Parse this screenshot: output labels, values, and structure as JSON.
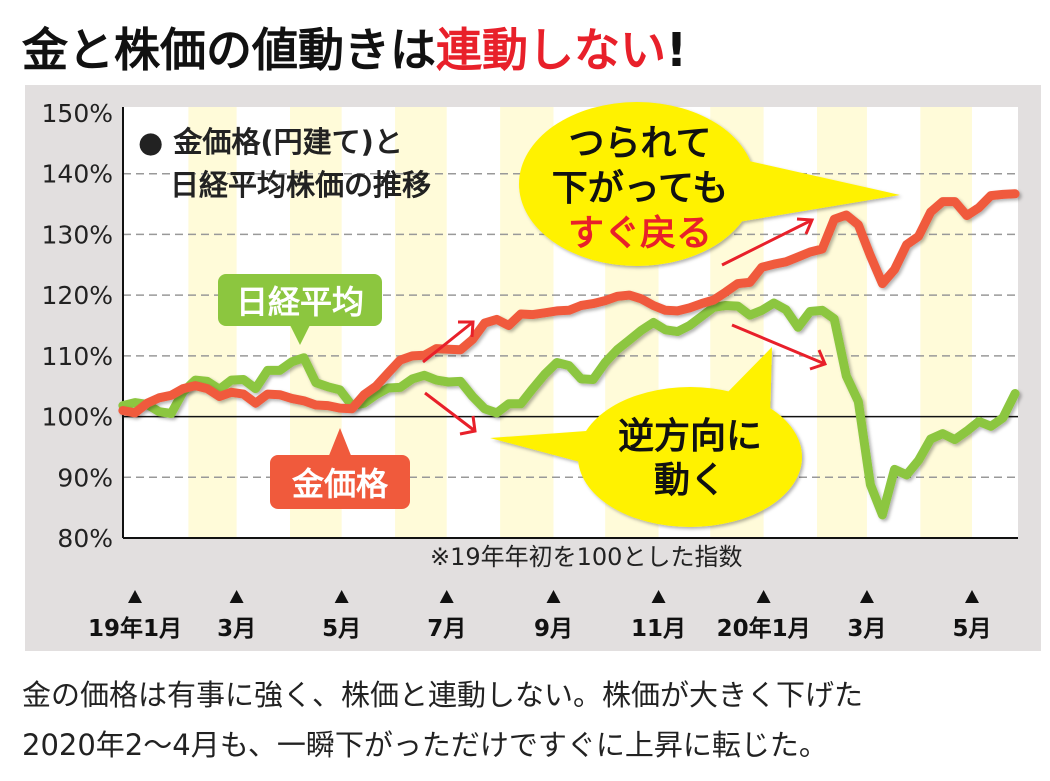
{
  "headline": {
    "part1": "金と株価の値動きは",
    "part2": "連動しない",
    "part3": "!"
  },
  "legend": {
    "line1": "● 金価格(円建て)と",
    "line2": "日経平均株価の推移"
  },
  "labels": {
    "nikkei": "日経平均",
    "gold": "金価格"
  },
  "bubble1": {
    "line1": "つられて",
    "line2": "下がっても",
    "line3": "すぐ戻る"
  },
  "bubble2": {
    "line1": "逆方向に",
    "line2": "動く"
  },
  "note": "※19年年初を100とした指数",
  "caption": {
    "line1": "金の価格は有事に強く、株価と連動しない。株価が大きく下げた",
    "line2": "2020年2〜4月も、一瞬下がっただけですぐに上昇に転じた。"
  },
  "colors": {
    "gold": "#f05a3c",
    "nikkei": "#8cc63f",
    "highlight_red": "#e8202a",
    "bubble": "#fff200",
    "panel": "#e2dfdf",
    "band": "#fffbd9"
  },
  "chart_data": {
    "type": "line",
    "ylim": [
      80,
      150
    ],
    "yticks": [
      80,
      90,
      100,
      110,
      120,
      130,
      140,
      150
    ],
    "ytick_labels": [
      "80%",
      "90%",
      "100%",
      "110%",
      "120%",
      "130%",
      "140%",
      "150%"
    ],
    "baseline": 100,
    "grid": "horizontal dashed",
    "xticks": [
      {
        "date": "2019-01-01",
        "label": "19年1月"
      },
      {
        "date": "2019-03-01",
        "label": "3月"
      },
      {
        "date": "2019-05-01",
        "label": "5月"
      },
      {
        "date": "2019-07-01",
        "label": "7月"
      },
      {
        "date": "2019-09-01",
        "label": "9月"
      },
      {
        "date": "2019-11-01",
        "label": "11月"
      },
      {
        "date": "2020-01-01",
        "label": "20年1月"
      },
      {
        "date": "2020-03-01",
        "label": "3月"
      },
      {
        "date": "2020-05-01",
        "label": "5月"
      }
    ],
    "x": [
      "2018-12-25",
      "2019-01-01",
      "2019-01-08",
      "2019-01-15",
      "2019-01-22",
      "2019-01-29",
      "2019-02-05",
      "2019-02-12",
      "2019-02-19",
      "2019-02-26",
      "2019-03-05",
      "2019-03-12",
      "2019-03-19",
      "2019-03-26",
      "2019-04-02",
      "2019-04-09",
      "2019-04-16",
      "2019-04-23",
      "2019-04-30",
      "2019-05-07",
      "2019-05-14",
      "2019-05-21",
      "2019-05-28",
      "2019-06-04",
      "2019-06-11",
      "2019-06-18",
      "2019-06-25",
      "2019-07-02",
      "2019-07-09",
      "2019-07-16",
      "2019-07-23",
      "2019-07-30",
      "2019-08-06",
      "2019-08-13",
      "2019-08-20",
      "2019-08-27",
      "2019-09-03",
      "2019-09-10",
      "2019-09-17",
      "2019-09-24",
      "2019-10-01",
      "2019-10-08",
      "2019-10-15",
      "2019-10-22",
      "2019-10-29",
      "2019-11-05",
      "2019-11-12",
      "2019-11-19",
      "2019-11-26",
      "2019-12-03",
      "2019-12-10",
      "2019-12-17",
      "2019-12-24",
      "2019-12-31",
      "2020-01-07",
      "2020-01-14",
      "2020-01-21",
      "2020-01-28",
      "2020-02-04",
      "2020-02-11",
      "2020-02-18",
      "2020-02-25",
      "2020-03-03",
      "2020-03-10",
      "2020-03-17",
      "2020-03-24",
      "2020-03-31",
      "2020-04-07",
      "2020-04-14",
      "2020-04-21",
      "2020-04-28",
      "2020-05-05",
      "2020-05-12",
      "2020-05-19",
      "2020-05-26"
    ],
    "series": [
      {
        "name": "金価格",
        "color": "#f05a3c",
        "values": [
          101.0,
          100.6,
          102.2,
          103.1,
          103.5,
          104.6,
          105.1,
          104.6,
          103.3,
          104.0,
          103.7,
          102.2,
          103.7,
          103.6,
          103.0,
          102.6,
          101.9,
          101.8,
          101.4,
          101.3,
          103.6,
          105.0,
          107.2,
          109.3,
          110.0,
          110.1,
          111.2,
          111.1,
          111.0,
          112.7,
          115.4,
          116.0,
          115.0,
          116.9,
          116.8,
          117.1,
          117.4,
          117.5,
          118.3,
          118.6,
          119.1,
          119.8,
          120.0,
          119.4,
          118.3,
          117.5,
          117.4,
          117.9,
          118.6,
          119.2,
          120.5,
          121.9,
          122.1,
          124.6,
          125.1,
          125.5,
          126.3,
          127.1,
          127.6,
          132.5,
          133.2,
          131.6,
          126.5,
          121.9,
          124.2,
          128.3,
          129.7,
          133.7,
          135.4,
          135.4,
          133.1,
          134.4,
          136.4,
          136.6,
          136.7
        ]
      },
      {
        "name": "日経平均",
        "color": "#8cc63f",
        "values": [
          101.8,
          102.3,
          102.0,
          100.8,
          100.5,
          104.1,
          106.0,
          105.8,
          104.5,
          106.0,
          106.1,
          104.6,
          107.6,
          107.6,
          109.0,
          109.7,
          105.6,
          104.9,
          104.4,
          101.8,
          102.2,
          103.6,
          104.7,
          104.8,
          106.2,
          106.8,
          106.0,
          105.7,
          105.8,
          103.3,
          101.3,
          100.6,
          102.1,
          102.1,
          104.6,
          107.0,
          108.9,
          108.4,
          106.2,
          106.1,
          108.9,
          111.0,
          112.6,
          114.2,
          115.5,
          114.3,
          114.0,
          115.0,
          116.5,
          118.0,
          118.3,
          118.2,
          116.7,
          117.5,
          118.7,
          117.6,
          114.7,
          117.3,
          117.5,
          116.1,
          106.7,
          102.5,
          88.8,
          83.8,
          91.3,
          90.4,
          92.8,
          96.3,
          97.2,
          96.2,
          97.6,
          99.2,
          98.4,
          99.8,
          103.8
        ]
      }
    ]
  }
}
